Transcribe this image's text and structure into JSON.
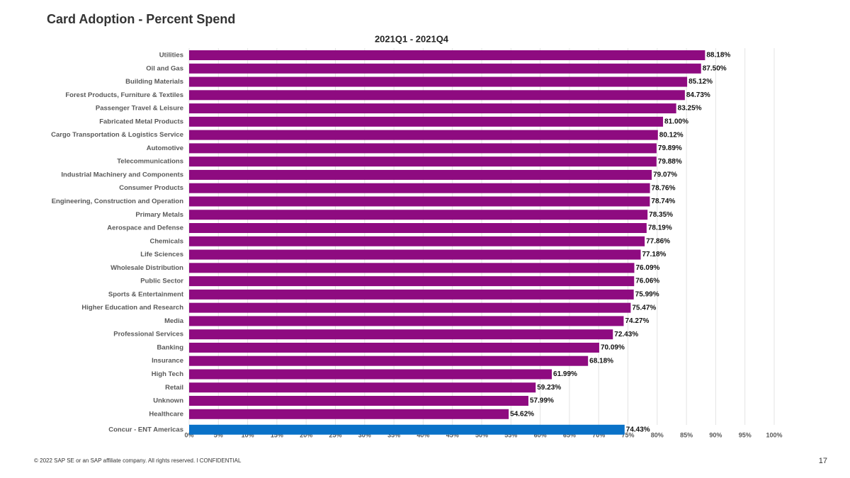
{
  "slide": {
    "title": "Card Adoption - Percent Spend",
    "footer": "© 2022 SAP SE or an SAP affiliate company. All rights reserved. ǀ CONFIDENTIAL",
    "page_number": "17"
  },
  "chart_data": {
    "type": "hbar",
    "title": "2021Q1 - 2021Q4",
    "categories": [
      "Utilities",
      "Oil and Gas",
      "Building Materials",
      "Forest Products, Furniture & Textiles",
      "Passenger Travel & Leisure",
      "Fabricated Metal Products",
      "Cargo Transportation & Logistics Service",
      "Automotive",
      "Telecommunications",
      "Industrial Machinery and Components",
      "Consumer Products",
      "Engineering, Construction and Operation",
      "Primary Metals",
      "Aerospace and Defense",
      "Chemicals",
      "Life Sciences",
      "Wholesale Distribution",
      "Public Sector",
      "Sports & Entertainment",
      "Higher Education and Research",
      "Media",
      "Professional Services",
      "Banking",
      "Insurance",
      "High Tech",
      "Retail",
      "Unknown",
      "Healthcare",
      "Concur - ENT Americas"
    ],
    "values": [
      88.18,
      87.5,
      85.12,
      84.73,
      83.25,
      81.0,
      80.12,
      79.89,
      79.88,
      79.07,
      78.76,
      78.74,
      78.35,
      78.19,
      77.86,
      77.18,
      76.09,
      76.06,
      75.99,
      75.47,
      74.27,
      72.43,
      70.09,
      68.18,
      61.99,
      59.23,
      57.99,
      54.62,
      74.43
    ],
    "value_labels": [
      "88.18%",
      "87.50%",
      "85.12%",
      "84.73%",
      "83.25%",
      "81.00%",
      "80.12%",
      "79.89%",
      "79.88%",
      "79.07%",
      "78.76%",
      "78.74%",
      "78.35%",
      "78.19%",
      "77.86%",
      "77.18%",
      "76.09%",
      "76.06%",
      "75.99%",
      "75.47%",
      "74.27%",
      "72.43%",
      "70.09%",
      "68.18%",
      "61.99%",
      "59.23%",
      "57.99%",
      "54.62%",
      "74.43%"
    ],
    "colors": [
      "#8e0b80",
      "#8e0b80",
      "#8e0b80",
      "#8e0b80",
      "#8e0b80",
      "#8e0b80",
      "#8e0b80",
      "#8e0b80",
      "#8e0b80",
      "#8e0b80",
      "#8e0b80",
      "#8e0b80",
      "#8e0b80",
      "#8e0b80",
      "#8e0b80",
      "#8e0b80",
      "#8e0b80",
      "#8e0b80",
      "#8e0b80",
      "#8e0b80",
      "#8e0b80",
      "#8e0b80",
      "#8e0b80",
      "#8e0b80",
      "#8e0b80",
      "#8e0b80",
      "#8e0b80",
      "#8e0b80",
      "#0a72c8"
    ],
    "xlim": [
      0,
      100
    ],
    "xticks": [
      {
        "value": 0,
        "label": "0%"
      },
      {
        "value": 5,
        "label": "5%"
      },
      {
        "value": 10,
        "label": "10%"
      },
      {
        "value": 15,
        "label": "15%"
      },
      {
        "value": 20,
        "label": "20%"
      },
      {
        "value": 25,
        "label": "25%"
      },
      {
        "value": 30,
        "label": "30%"
      },
      {
        "value": 35,
        "label": "35%"
      },
      {
        "value": 40,
        "label": "40%"
      },
      {
        "value": 45,
        "label": "45%"
      },
      {
        "value": 50,
        "label": "50%"
      },
      {
        "value": 55,
        "label": "55%"
      },
      {
        "value": 60,
        "label": "60%"
      },
      {
        "value": 65,
        "label": "65%"
      },
      {
        "value": 70,
        "label": "70%"
      },
      {
        "value": 75,
        "label": "75%"
      },
      {
        "value": 80,
        "label": "80%"
      },
      {
        "value": 85,
        "label": "85%"
      },
      {
        "value": 90,
        "label": "90%"
      },
      {
        "value": 95,
        "label": "95%"
      },
      {
        "value": 100,
        "label": "100%"
      }
    ],
    "grid": true
  }
}
